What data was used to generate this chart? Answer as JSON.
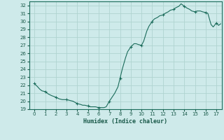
{
  "title": "",
  "xlabel": "Humidex (Indice chaleur)",
  "ylabel": "",
  "xlim": [
    -0.5,
    17.5
  ],
  "ylim": [
    19,
    32.5
  ],
  "yticks": [
    19,
    20,
    21,
    22,
    23,
    24,
    25,
    26,
    27,
    28,
    29,
    30,
    31,
    32
  ],
  "xticks": [
    0,
    1,
    2,
    3,
    4,
    5,
    6,
    7,
    8,
    9,
    10,
    11,
    12,
    13,
    14,
    15,
    16,
    17
  ],
  "bg_color": "#ceeaea",
  "grid_color": "#b0d4d0",
  "line_color": "#1a6b5a",
  "marker_color": "#1a6b5a",
  "x": [
    0,
    0.15,
    0.3,
    0.5,
    0.7,
    1.0,
    1.3,
    1.6,
    2.0,
    2.3,
    2.6,
    3.0,
    3.3,
    3.6,
    4.0,
    4.3,
    4.5,
    4.7,
    5.0,
    5.2,
    5.5,
    5.7,
    6.0,
    6.2,
    6.5,
    6.7,
    7.0,
    7.2,
    7.5,
    7.8,
    8.0,
    8.2,
    8.5,
    8.7,
    9.0,
    9.3,
    9.5,
    9.7,
    10.0,
    10.2,
    10.5,
    10.7,
    11.0,
    11.2,
    11.5,
    11.7,
    12.0,
    12.2,
    12.5,
    12.7,
    13.0,
    13.2,
    13.5,
    13.7,
    14.0,
    14.2,
    14.5,
    14.7,
    15.0,
    15.2,
    15.5,
    15.7,
    16.0,
    16.2,
    16.5,
    16.7,
    17.0,
    17.2,
    17.4
  ],
  "y": [
    22.2,
    22.0,
    21.8,
    21.5,
    21.3,
    21.2,
    20.9,
    20.7,
    20.5,
    20.3,
    20.2,
    20.2,
    20.1,
    20.0,
    19.7,
    19.6,
    19.5,
    19.5,
    19.4,
    19.3,
    19.3,
    19.3,
    19.2,
    19.2,
    19.2,
    19.3,
    20.0,
    20.4,
    21.0,
    21.8,
    22.9,
    24.0,
    25.4,
    26.2,
    26.8,
    27.2,
    27.2,
    27.1,
    27.0,
    27.5,
    28.8,
    29.4,
    30.0,
    30.3,
    30.5,
    30.7,
    30.8,
    31.0,
    31.2,
    31.4,
    31.5,
    31.7,
    31.9,
    32.2,
    31.9,
    31.7,
    31.5,
    31.3,
    31.2,
    31.3,
    31.3,
    31.2,
    31.1,
    31.0,
    29.6,
    29.3,
    29.8,
    29.5,
    29.7
  ],
  "marker_x": [
    0,
    1.0,
    2.0,
    3.0,
    4.0,
    5.0,
    6.0,
    7.0,
    8.0,
    9.0,
    10.0,
    11.0,
    12.0,
    13.0,
    14.0,
    15.0,
    16.0,
    17.0
  ],
  "marker_y": [
    22.2,
    21.2,
    20.5,
    20.2,
    19.7,
    19.4,
    19.2,
    20.0,
    22.9,
    26.8,
    27.0,
    30.0,
    30.8,
    31.5,
    31.9,
    31.2,
    31.1,
    29.8
  ]
}
